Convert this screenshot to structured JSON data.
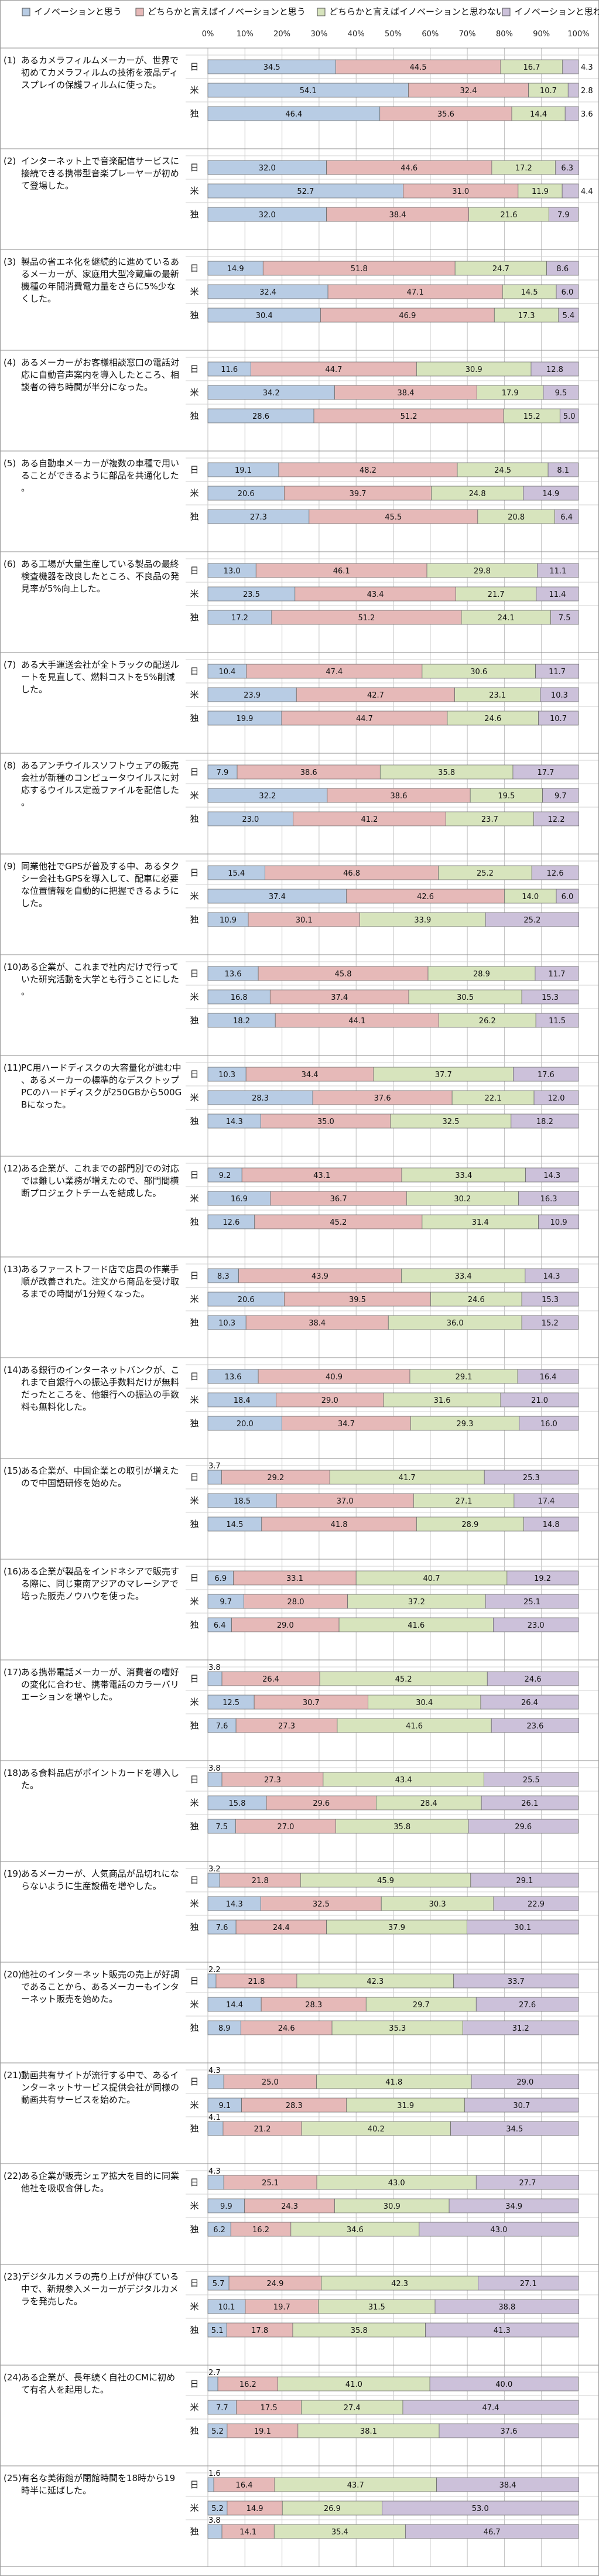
{
  "chart_data": {
    "type": "bar",
    "orientation": "horizontal",
    "stacked": true,
    "percent_stacked": true,
    "xlim": [
      0,
      100
    ],
    "x_ticks": [
      "0%",
      "10%",
      "20%",
      "30%",
      "40%",
      "50%",
      "60%",
      "70%",
      "80%",
      "90%",
      "100%"
    ],
    "grid": true,
    "legend_position": "top",
    "series": [
      {
        "name": "イノベーションと思う",
        "color": "#b8cce4"
      },
      {
        "name": "どちらかと言えばイノベーションと思う",
        "color": "#e6b9b8"
      },
      {
        "name": "どちらかと言えばイノベーションと思わない",
        "color": "#d7e4bd"
      },
      {
        "name": "イノベーションと思わない",
        "color": "#ccc1da"
      }
    ],
    "questions": [
      {
        "label": "(1)",
        "text": "あるカメラフィルムメーカーが、世界で初めてカメラフィルムの技術を液晶ディスプレイの保護フィルムに使った。",
        "rows": [
          {
            "country": "日",
            "values": [
              34.5,
              44.5,
              16.7,
              4.3
            ]
          },
          {
            "country": "米",
            "values": [
              54.1,
              32.4,
              10.7,
              2.8
            ]
          },
          {
            "country": "独",
            "values": [
              46.4,
              35.6,
              14.4,
              3.6
            ]
          }
        ]
      },
      {
        "label": "(2)",
        "text": "インターネット上で音楽配信サービスに接続できる携帯型音楽プレーヤーが初めて登場した。",
        "rows": [
          {
            "country": "日",
            "values": [
              32.0,
              44.6,
              17.2,
              6.3
            ]
          },
          {
            "country": "米",
            "values": [
              52.7,
              31.0,
              11.9,
              4.4
            ]
          },
          {
            "country": "独",
            "values": [
              32.0,
              38.4,
              21.6,
              7.9
            ]
          }
        ]
      },
      {
        "label": "(3)",
        "text": "製品の省エネ化を継続的に進めているあるメーカーが、家庭用大型冷蔵庫の最新機種の年間消費電力量をさらに5%少なくした。",
        "rows": [
          {
            "country": "日",
            "values": [
              14.9,
              51.8,
              24.7,
              8.6
            ]
          },
          {
            "country": "米",
            "values": [
              32.4,
              47.1,
              14.5,
              6.0
            ]
          },
          {
            "country": "独",
            "values": [
              30.4,
              46.9,
              17.3,
              5.4
            ]
          }
        ]
      },
      {
        "label": "(4)",
        "text": "あるメーカーがお客様相談窓口の電話対応に自動音声案内を導入したところ、相談者の待ち時間が半分になった。",
        "rows": [
          {
            "country": "日",
            "values": [
              11.6,
              44.7,
              30.9,
              12.8
            ]
          },
          {
            "country": "米",
            "values": [
              34.2,
              38.4,
              17.9,
              9.5
            ]
          },
          {
            "country": "独",
            "values": [
              28.6,
              51.2,
              15.2,
              5.0
            ]
          }
        ]
      },
      {
        "label": "(5)",
        "text": "ある自動車メーカーが複数の車種で用いることができるように部品を共通化した。",
        "rows": [
          {
            "country": "日",
            "values": [
              19.1,
              48.2,
              24.5,
              8.1
            ]
          },
          {
            "country": "米",
            "values": [
              20.6,
              39.7,
              24.8,
              14.9
            ]
          },
          {
            "country": "独",
            "values": [
              27.3,
              45.5,
              20.8,
              6.4
            ]
          }
        ]
      },
      {
        "label": "(6)",
        "text": "ある工場が大量生産している製品の最終検査機器を改良したところ、不良品の発見率が5%向上した。",
        "rows": [
          {
            "country": "日",
            "values": [
              13.0,
              46.1,
              29.8,
              11.1
            ]
          },
          {
            "country": "米",
            "values": [
              23.5,
              43.4,
              21.7,
              11.4
            ]
          },
          {
            "country": "独",
            "values": [
              17.2,
              51.2,
              24.1,
              7.5
            ]
          }
        ]
      },
      {
        "label": "(7)",
        "text": "ある大手運送会社が全トラックの配送ルートを見直して、燃料コストを5%削減した。",
        "rows": [
          {
            "country": "日",
            "values": [
              10.4,
              47.4,
              30.6,
              11.7
            ]
          },
          {
            "country": "米",
            "values": [
              23.9,
              42.7,
              23.1,
              10.3
            ]
          },
          {
            "country": "独",
            "values": [
              19.9,
              44.7,
              24.6,
              10.7
            ]
          }
        ]
      },
      {
        "label": "(8)",
        "text": "あるアンチウイルスソフトウェアの販売会社が新種のコンピュータウイルスに対応するウイルス定義ファイルを配信した。",
        "rows": [
          {
            "country": "日",
            "values": [
              7.9,
              38.6,
              35.8,
              17.7
            ]
          },
          {
            "country": "米",
            "values": [
              32.2,
              38.6,
              19.5,
              9.7
            ]
          },
          {
            "country": "独",
            "values": [
              23.0,
              41.2,
              23.7,
              12.2
            ]
          }
        ]
      },
      {
        "label": "(9)",
        "text": "同業他社でGPSが普及する中、あるタクシー会社もGPSを導入して、配車に必要な位置情報を自動的に把握できるようにした。",
        "rows": [
          {
            "country": "日",
            "values": [
              15.4,
              46.8,
              25.2,
              12.6
            ]
          },
          {
            "country": "米",
            "values": [
              37.4,
              42.6,
              14.0,
              6.0
            ]
          },
          {
            "country": "独",
            "values": [
              10.9,
              30.1,
              33.9,
              25.2
            ]
          }
        ]
      },
      {
        "label": "(10)",
        "text": "ある企業が、これまで社内だけで行っていた研究活動を大学とも行うことにした。",
        "rows": [
          {
            "country": "日",
            "values": [
              13.6,
              45.8,
              28.9,
              11.7
            ]
          },
          {
            "country": "米",
            "values": [
              16.8,
              37.4,
              30.5,
              15.3
            ]
          },
          {
            "country": "独",
            "values": [
              18.2,
              44.1,
              26.2,
              11.5
            ]
          }
        ]
      },
      {
        "label": "(11)",
        "text": "PC用ハードディスクの大容量化が進む中、あるメーカーの標準的なデスクトップPCのハードディスクが250GBから500GBになった。",
        "rows": [
          {
            "country": "日",
            "values": [
              10.3,
              34.4,
              37.7,
              17.6
            ]
          },
          {
            "country": "米",
            "values": [
              28.3,
              37.6,
              22.1,
              12.0
            ]
          },
          {
            "country": "独",
            "values": [
              14.3,
              35.0,
              32.5,
              18.2
            ]
          }
        ]
      },
      {
        "label": "(12)",
        "text": "ある企業が、これまでの部門別での対応では難しい業務が増えたので、部門間横断プロジェクトチームを結成した。",
        "rows": [
          {
            "country": "日",
            "values": [
              9.2,
              43.1,
              33.4,
              14.3
            ]
          },
          {
            "country": "米",
            "values": [
              16.9,
              36.7,
              30.2,
              16.3
            ]
          },
          {
            "country": "独",
            "values": [
              12.6,
              45.2,
              31.4,
              10.9
            ]
          }
        ]
      },
      {
        "label": "(13)",
        "text": "あるファーストフード店で店員の作業手順が改善された。注文から商品を受け取るまでの時間が1分短くなった。",
        "rows": [
          {
            "country": "日",
            "values": [
              8.3,
              43.9,
              33.4,
              14.3
            ]
          },
          {
            "country": "米",
            "values": [
              20.6,
              39.5,
              24.6,
              15.3
            ]
          },
          {
            "country": "独",
            "values": [
              10.3,
              38.4,
              36.0,
              15.2
            ]
          }
        ]
      },
      {
        "label": "(14)",
        "text": "ある銀行のインターネットバンクが、これまで自銀行への振込手数料だけが無料だったところを、他銀行への振込の手数料も無料化した。",
        "rows": [
          {
            "country": "日",
            "values": [
              13.6,
              40.9,
              29.1,
              16.4
            ]
          },
          {
            "country": "米",
            "values": [
              18.4,
              29.0,
              31.6,
              21.0
            ]
          },
          {
            "country": "独",
            "values": [
              20.0,
              34.7,
              29.3,
              16.0
            ]
          }
        ]
      },
      {
        "label": "(15)",
        "text": "ある企業が、中国企業との取引が増えたので中国語研修を始めた。",
        "rows": [
          {
            "country": "日",
            "values": [
              3.7,
              29.2,
              41.7,
              25.3
            ]
          },
          {
            "country": "米",
            "values": [
              18.5,
              37.0,
              27.1,
              17.4
            ]
          },
          {
            "country": "独",
            "values": [
              14.5,
              41.8,
              28.9,
              14.8
            ]
          }
        ]
      },
      {
        "label": "(16)",
        "text": "ある企業が製品をインドネシアで販売する際に、同じ東南アジアのマレーシアで培った販売ノウハウを使った。",
        "rows": [
          {
            "country": "日",
            "values": [
              6.9,
              33.1,
              40.7,
              19.2
            ]
          },
          {
            "country": "米",
            "values": [
              9.7,
              28.0,
              37.2,
              25.1
            ]
          },
          {
            "country": "独",
            "values": [
              6.4,
              29.0,
              41.6,
              23.0
            ]
          }
        ]
      },
      {
        "label": "(17)",
        "text": "ある携帯電話メーカーが、消費者の嗜好の変化に合わせ、携帯電話のカラーバリエーションを増やした。",
        "rows": [
          {
            "country": "日",
            "values": [
              3.8,
              26.4,
              45.2,
              24.6
            ]
          },
          {
            "country": "米",
            "values": [
              12.5,
              30.7,
              30.4,
              26.4
            ]
          },
          {
            "country": "独",
            "values": [
              7.6,
              27.3,
              41.6,
              23.6
            ]
          }
        ]
      },
      {
        "label": "(18)",
        "text": "ある食料品店がポイントカードを導入した。",
        "rows": [
          {
            "country": "日",
            "values": [
              3.8,
              27.3,
              43.4,
              25.5
            ]
          },
          {
            "country": "米",
            "values": [
              15.8,
              29.6,
              28.4,
              26.1
            ]
          },
          {
            "country": "独",
            "values": [
              7.5,
              27.0,
              35.8,
              29.6
            ]
          }
        ]
      },
      {
        "label": "(19)",
        "text": "あるメーカーが、人気商品が品切れにならないように生産設備を増やした。",
        "rows": [
          {
            "country": "日",
            "values": [
              3.2,
              21.8,
              45.9,
              29.1
            ]
          },
          {
            "country": "米",
            "values": [
              14.3,
              32.5,
              30.3,
              22.9
            ]
          },
          {
            "country": "独",
            "values": [
              7.6,
              24.4,
              37.9,
              30.1
            ]
          }
        ]
      },
      {
        "label": "(20)",
        "text": "他社のインターネット販売の売上が好調であることから、あるメーカーもインターネット販売を始めた。",
        "rows": [
          {
            "country": "日",
            "values": [
              2.2,
              21.8,
              42.3,
              33.7
            ]
          },
          {
            "country": "米",
            "values": [
              14.4,
              28.3,
              29.7,
              27.6
            ]
          },
          {
            "country": "独",
            "values": [
              8.9,
              24.6,
              35.3,
              31.2
            ]
          }
        ]
      },
      {
        "label": "(21)",
        "text": "動画共有サイトが流行する中で、あるインターネットサービス提供会社が同様の動画共有サービスを始めた。",
        "rows": [
          {
            "country": "日",
            "values": [
              4.3,
              25.0,
              41.8,
              29.0
            ]
          },
          {
            "country": "米",
            "values": [
              9.1,
              28.3,
              31.9,
              30.7
            ]
          },
          {
            "country": "独",
            "values": [
              4.1,
              21.2,
              40.2,
              34.5
            ]
          }
        ]
      },
      {
        "label": "(22)",
        "text": "ある企業が販売シェア拡大を目的に同業他社を吸収合併した。",
        "rows": [
          {
            "country": "日",
            "values": [
              4.3,
              25.1,
              43.0,
              27.7
            ]
          },
          {
            "country": "米",
            "values": [
              9.9,
              24.3,
              30.9,
              34.9
            ]
          },
          {
            "country": "独",
            "values": [
              6.2,
              16.2,
              34.6,
              43.0
            ]
          }
        ]
      },
      {
        "label": "(23)",
        "text": "デジタルカメラの売り上げが伸びている中で、新規参入メーカーがデジタルカメラを発売した。",
        "rows": [
          {
            "country": "日",
            "values": [
              5.7,
              24.9,
              42.3,
              27.1
            ]
          },
          {
            "country": "米",
            "values": [
              10.1,
              19.7,
              31.5,
              38.8
            ]
          },
          {
            "country": "独",
            "values": [
              5.1,
              17.8,
              35.8,
              41.3
            ]
          }
        ]
      },
      {
        "label": "(24)",
        "text": "ある企業が、長年続く自社のCMに初めて有名人を起用した。",
        "rows": [
          {
            "country": "日",
            "values": [
              2.7,
              16.2,
              41.0,
              40.0
            ]
          },
          {
            "country": "米",
            "values": [
              7.7,
              17.5,
              27.4,
              47.4
            ]
          },
          {
            "country": "独",
            "values": [
              5.2,
              19.1,
              38.1,
              37.6
            ]
          }
        ]
      },
      {
        "label": "(25)",
        "text": "有名な美術館が閉館時間を18時から19時半に延ばした。",
        "rows": [
          {
            "country": "日",
            "values": [
              1.6,
              16.4,
              43.7,
              38.4
            ]
          },
          {
            "country": "米",
            "values": [
              5.2,
              14.9,
              26.9,
              53.0
            ]
          },
          {
            "country": "独",
            "values": [
              3.8,
              14.1,
              35.4,
              46.7
            ]
          }
        ]
      }
    ]
  }
}
